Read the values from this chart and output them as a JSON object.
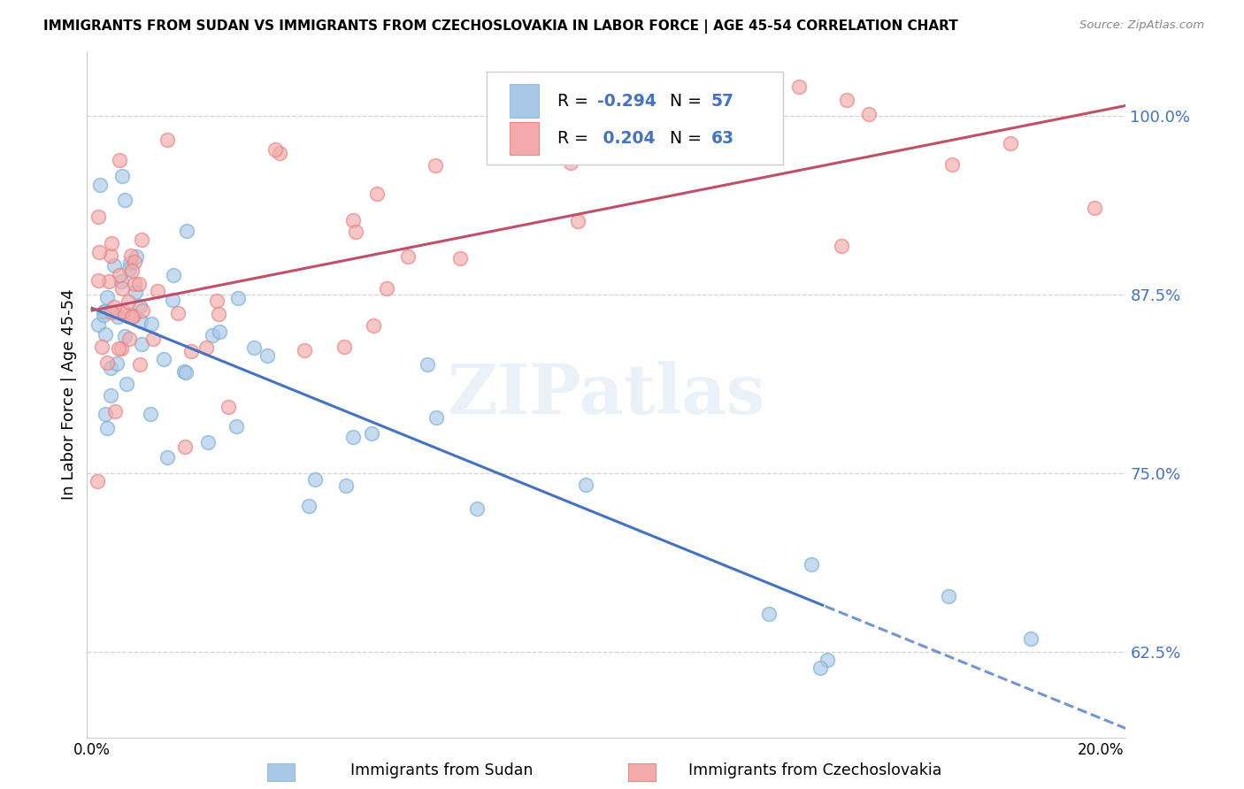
{
  "title": "IMMIGRANTS FROM SUDAN VS IMMIGRANTS FROM CZECHOSLOVAKIA IN LABOR FORCE | AGE 45-54 CORRELATION CHART",
  "source": "Source: ZipAtlas.com",
  "ylabel": "In Labor Force | Age 45-54",
  "ytick_labels": [
    "62.5%",
    "75.0%",
    "87.5%",
    "100.0%"
  ],
  "ytick_values": [
    0.625,
    0.75,
    0.875,
    1.0
  ],
  "xlim": [
    -0.001,
    0.205
  ],
  "ylim": [
    0.565,
    1.045
  ],
  "sudan_color": "#a8c8e8",
  "czech_color": "#f4aaaa",
  "sudan_edge_color": "#7aaed0",
  "czech_edge_color": "#e88080",
  "sudan_line_color": "#4472c4",
  "czech_line_color": "#c0506a",
  "sudan_R": -0.294,
  "sudan_N": 57,
  "czech_R": 0.204,
  "czech_N": 63,
  "grid_color": "#cccccc",
  "legend_sudan_color": "#a8c8e8",
  "legend_czech_color": "#f4aaaa",
  "sudan_intercept": 0.878,
  "sudan_slope": -1.55,
  "czech_intercept": 0.862,
  "czech_slope": 0.72,
  "sudan_noise": 0.048,
  "czech_noise": 0.05,
  "dashed_cutoff": 0.145,
  "marker_size": 130,
  "marker_alpha": 0.65,
  "line_width": 2.2,
  "title_fontsize": 11.0,
  "tick_fontsize": 13,
  "ylabel_fontsize": 13
}
